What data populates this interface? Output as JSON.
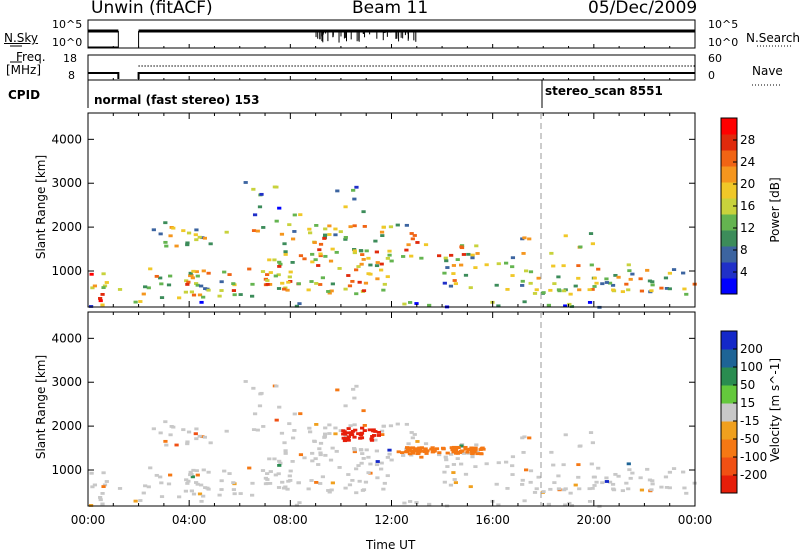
{
  "header": {
    "station": "Unwin (fitACF)",
    "beam": "Beam 11",
    "date": "05/Dec/2009"
  },
  "top_panel": {
    "left_label": "N.Sky",
    "left_ticks": [
      "10^5",
      "10^0"
    ],
    "right_label": "N.Search",
    "right_ticks": [
      "10^5",
      "10^0"
    ]
  },
  "freq_panel": {
    "label_line1": "Freq.",
    "label_line2": "[MHz]",
    "left_ticks": [
      "18",
      "8"
    ],
    "right_label": "Nave",
    "right_ticks": [
      "60",
      "0"
    ]
  },
  "cpid": {
    "label": "CPID",
    "modes": [
      {
        "text": "normal (fast stereo) 153"
      },
      {
        "text": "stereo_scan 8551"
      }
    ]
  },
  "chart_data": [
    {
      "type": "heatmap",
      "title": "",
      "xlabel": "Time UT",
      "ylabel": "Slant Range [km]",
      "xlim": [
        "00:00",
        "00:00"
      ],
      "ylim": [
        180,
        4600
      ],
      "x_tick_labels": [
        "00:00",
        "04:00",
        "08:00",
        "12:00",
        "16:00",
        "20:00",
        "00:00"
      ],
      "y_tick_labels": [
        "1000",
        "2000",
        "3000",
        "4000"
      ],
      "colorbar_label": "Power [dB]",
      "colorbar_ticks": [
        "28",
        "24",
        "20",
        "16",
        "12",
        "8",
        "4"
      ],
      "colorbar_colors": [
        "#0000ff",
        "#2030c8",
        "#3c64a0",
        "#3c8c5a",
        "#64b450",
        "#c8d23c",
        "#f0c828",
        "#f5961e",
        "#f06414",
        "#e02a0c",
        "#ff0000"
      ]
    },
    {
      "type": "heatmap",
      "title": "",
      "xlabel": "Time UT",
      "ylabel": "Slant Range [km]",
      "ylim": [
        180,
        4600
      ],
      "x_tick_labels": [
        "00:00",
        "04:00",
        "08:00",
        "12:00",
        "16:00",
        "20:00",
        "00:00"
      ],
      "y_tick_labels": [
        "1000",
        "2000",
        "3000",
        "4000"
      ],
      "colorbar_label": "Velocity [m s^-1]",
      "colorbar_ticks": [
        "200",
        "100",
        "50",
        "15",
        "-15",
        "-50",
        "-100",
        "-200"
      ],
      "colorbar_colors": [
        "#1428c8",
        "#1e6496",
        "#2a8c50",
        "#64c83c",
        "#c8c8c8",
        "#f0a01e",
        "#f57814",
        "#f05014",
        "#e61e0a"
      ]
    }
  ]
}
